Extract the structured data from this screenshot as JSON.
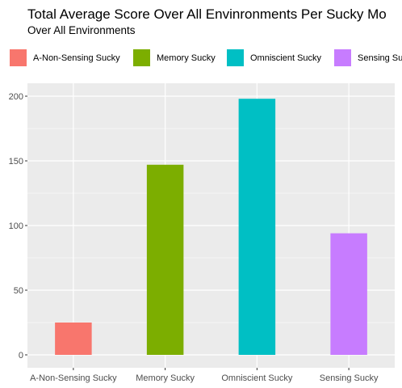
{
  "chart_data": {
    "type": "bar",
    "title": "Total Average Score Over All Envinronments Per Sucky Mo",
    "subtitle": "Over All Environments",
    "xlabel": "",
    "ylabel": "",
    "categories": [
      "A-Non-Sensing Sucky",
      "Memory Sucky",
      "Omniscient Sucky",
      "Sensing Sucky"
    ],
    "values": [
      25,
      147,
      198,
      94
    ],
    "colors": [
      "#F8766D",
      "#7CAE00",
      "#00BFC4",
      "#C77CFF"
    ],
    "legend": {
      "position": "top",
      "entries": [
        "A-Non-Sensing Sucky",
        "Memory Sucky",
        "Omniscient Sucky",
        "Sensing Su"
      ]
    },
    "yticks": [
      0,
      50,
      100,
      150,
      200
    ],
    "ylim": [
      -10,
      210
    ],
    "grid": true,
    "panel_background": "#EBEBEB"
  }
}
